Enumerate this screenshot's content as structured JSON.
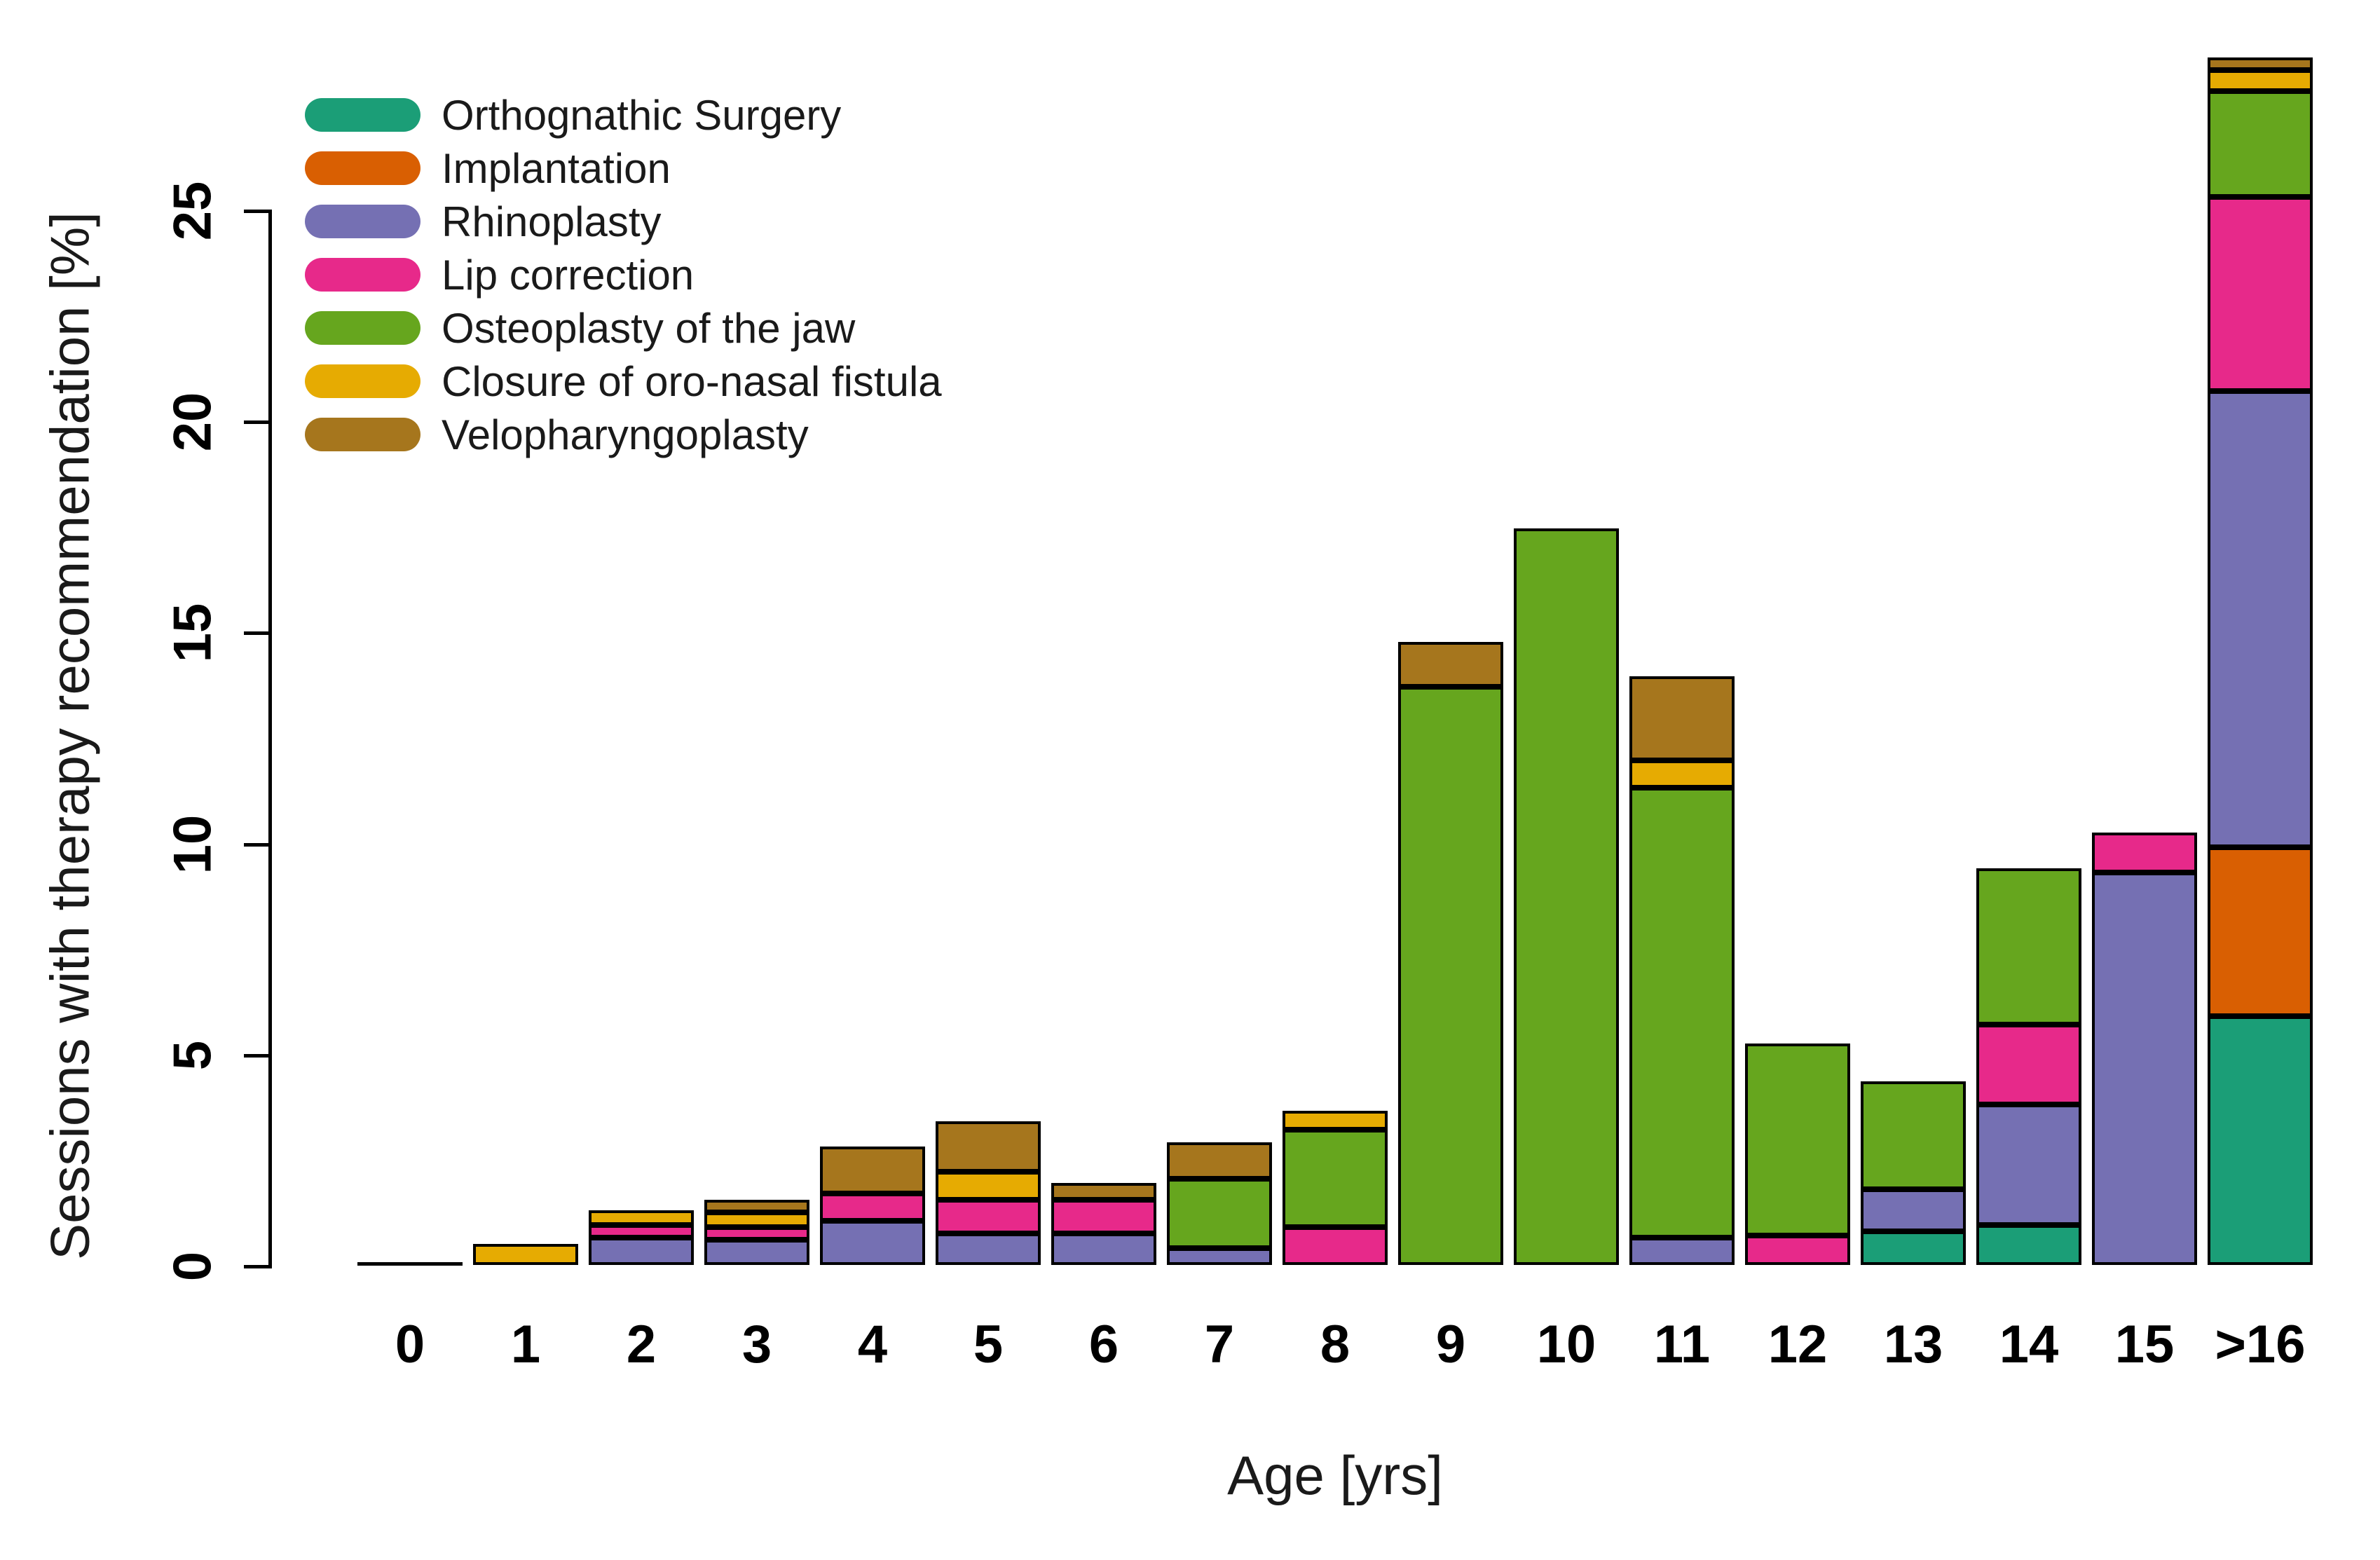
{
  "chart_data": {
    "type": "bar",
    "stacked": true,
    "title": "",
    "xlabel": "Age [yrs]",
    "ylabel": "Sessions with therapy recommendation [%]",
    "categories": [
      "0",
      "1",
      "2",
      "3",
      "4",
      "5",
      "6",
      "7",
      "8",
      "9",
      "10",
      "11",
      "12",
      "13",
      "14",
      "15",
      ">16"
    ],
    "y_ticks": [
      0,
      5,
      10,
      15,
      20,
      25
    ],
    "ylim": [
      0,
      29
    ],
    "grid": false,
    "legend_position": "top-left",
    "series": [
      {
        "name": "Orthognathic Surgery",
        "color": "#1B9E77",
        "values": [
          0,
          0,
          0,
          0,
          0,
          0,
          0,
          0,
          0,
          0,
          0,
          0,
          0,
          0.8,
          0.95,
          0,
          5.9
        ]
      },
      {
        "name": "Implantation",
        "color": "#D95F02",
        "values": [
          0,
          0,
          0,
          0,
          0,
          0,
          0,
          0,
          0,
          0,
          0,
          0,
          0,
          0,
          0,
          0,
          4.0
        ]
      },
      {
        "name": "Rhinoplasty",
        "color": "#7570B3",
        "values": [
          0,
          0,
          0.65,
          0.6,
          1.05,
          0.75,
          0.75,
          0.4,
          0,
          0,
          0,
          0.65,
          0,
          1.0,
          2.85,
          9.3,
          10.8
        ]
      },
      {
        "name": "Lip correction",
        "color": "#E7298A",
        "values": [
          0,
          0,
          0.3,
          0.3,
          0.65,
          0.8,
          0.8,
          0,
          0.9,
          0,
          0,
          0,
          0.7,
          0,
          1.9,
          0.95,
          4.6
        ]
      },
      {
        "name": "Osteoplasty of the jaw",
        "color": "#66A61E",
        "values": [
          0,
          0,
          0,
          0,
          0,
          0,
          0,
          1.65,
          2.3,
          13.7,
          17.45,
          10.65,
          4.55,
          2.55,
          3.7,
          0,
          2.5
        ]
      },
      {
        "name": "Closure of oro-nasal fistula",
        "color": "#E6AB02",
        "values": [
          0,
          0.5,
          0.35,
          0.35,
          0,
          0.65,
          0,
          0,
          0.45,
          0,
          0,
          0.65,
          0,
          0,
          0,
          0,
          0.5
        ]
      },
      {
        "name": "Velopharyngoplasty",
        "color": "#A6761D",
        "values": [
          0,
          0,
          0,
          0.3,
          1.1,
          1.2,
          0.4,
          0.85,
          0,
          1.05,
          0,
          2.0,
          0,
          0,
          0,
          0,
          0.3
        ]
      }
    ]
  },
  "axes": {
    "x_title": "Age [yrs]",
    "y_title": "Sessions with therapy recommendation [%]"
  },
  "colors": {
    "bar_border": "#000000",
    "axis": "#000000",
    "background": "#ffffff"
  }
}
